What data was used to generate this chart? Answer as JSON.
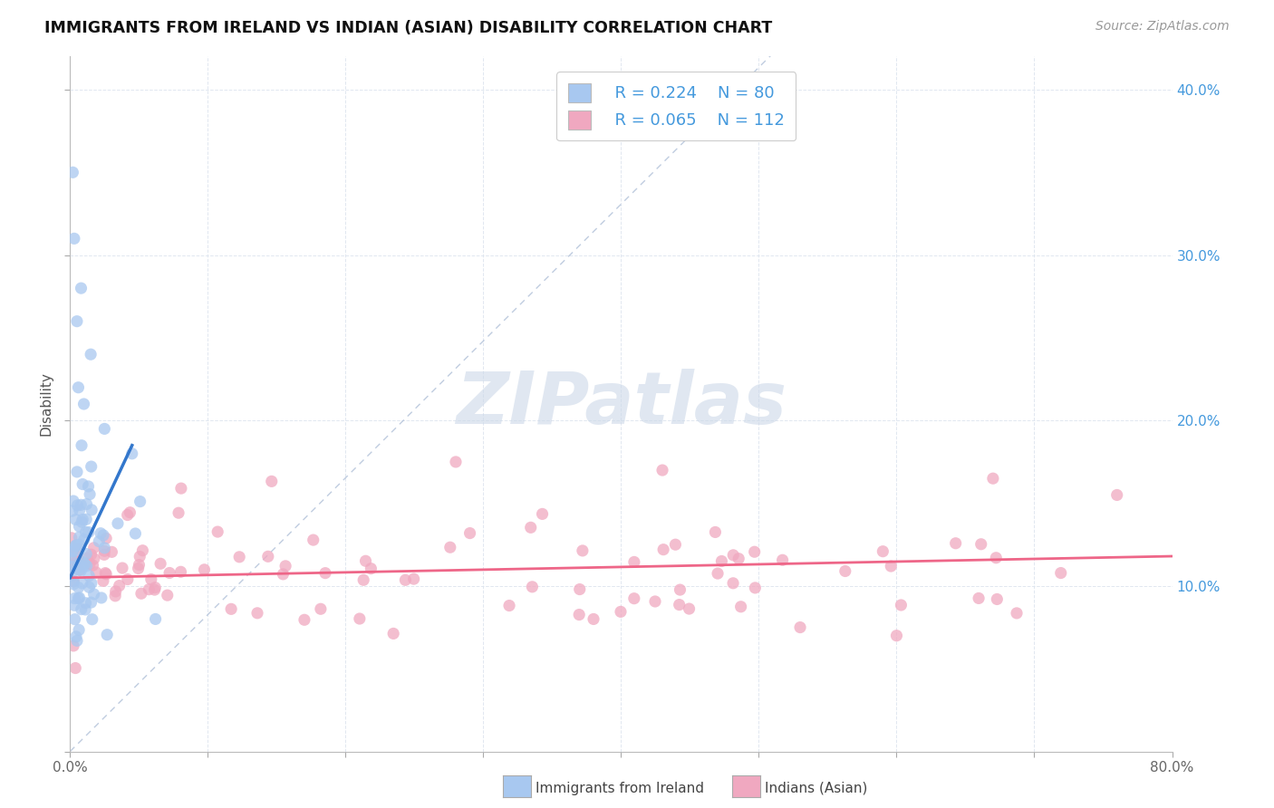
{
  "title": "IMMIGRANTS FROM IRELAND VS INDIAN (ASIAN) DISABILITY CORRELATION CHART",
  "source": "Source: ZipAtlas.com",
  "watermark": "ZIPatlas",
  "ylabel": "Disability",
  "xlim": [
    0.0,
    80.0
  ],
  "ylim": [
    0.0,
    42.0
  ],
  "legend_r1": "R = 0.224",
  "legend_n1": "N = 80",
  "legend_r2": "R = 0.065",
  "legend_n2": "N = 112",
  "color_blue": "#a8c8f0",
  "color_pink": "#f0a8c0",
  "color_blue_text": "#4499dd",
  "trendline_color_diag": "#b0c0d8",
  "trendline_color_blue": "#3377cc",
  "trendline_color_pink": "#ee6688",
  "bg_color": "#ffffff",
  "grid_color": "#dde4ee",
  "watermark_color": "#ccd8e8",
  "title_color": "#111111",
  "source_color": "#999999",
  "axis_label_color": "#555555",
  "tick_label_color": "#4499dd"
}
